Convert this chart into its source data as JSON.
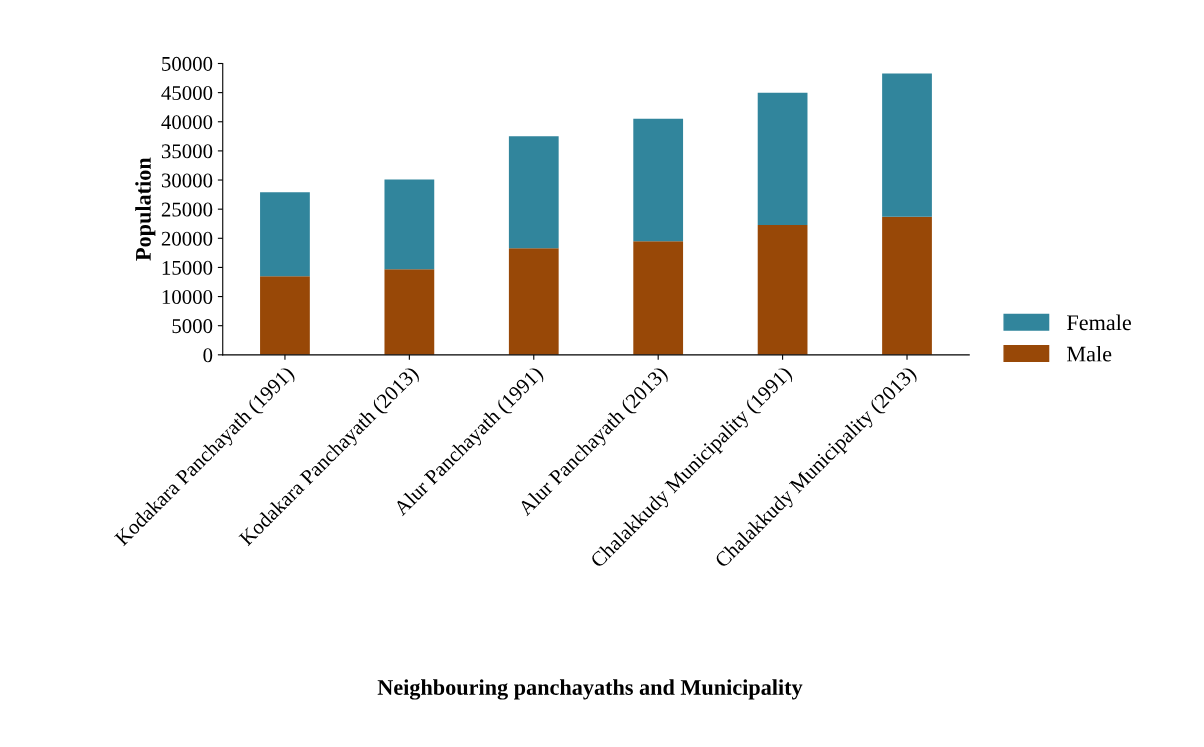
{
  "chart_data": {
    "type": "bar",
    "stacked": true,
    "categories": [
      "Kodakara Panchayath (1991)",
      "Kodakara Panchayath (2013)",
      "Alur Panchayath (1991)",
      "Alur Panchayath (2013)",
      "Chalakkudy Municipality (1991)",
      "Chalakkudy Municipality (2013)"
    ],
    "series": [
      {
        "name": "Male",
        "color": "#984807",
        "values": [
          13500,
          14700,
          18300,
          19500,
          22300,
          23700
        ]
      },
      {
        "name": "Female",
        "color": "#31859c",
        "values": [
          14400,
          15400,
          19200,
          21000,
          22700,
          24600
        ]
      }
    ],
    "xlabel": "Neighbouring panchayaths and Municipality",
    "ylabel": "Population",
    "ylim": [
      0,
      50000
    ],
    "yticks": [
      0,
      5000,
      10000,
      15000,
      20000,
      25000,
      30000,
      35000,
      40000,
      45000,
      50000
    ],
    "grid": false,
    "legend": "right"
  }
}
